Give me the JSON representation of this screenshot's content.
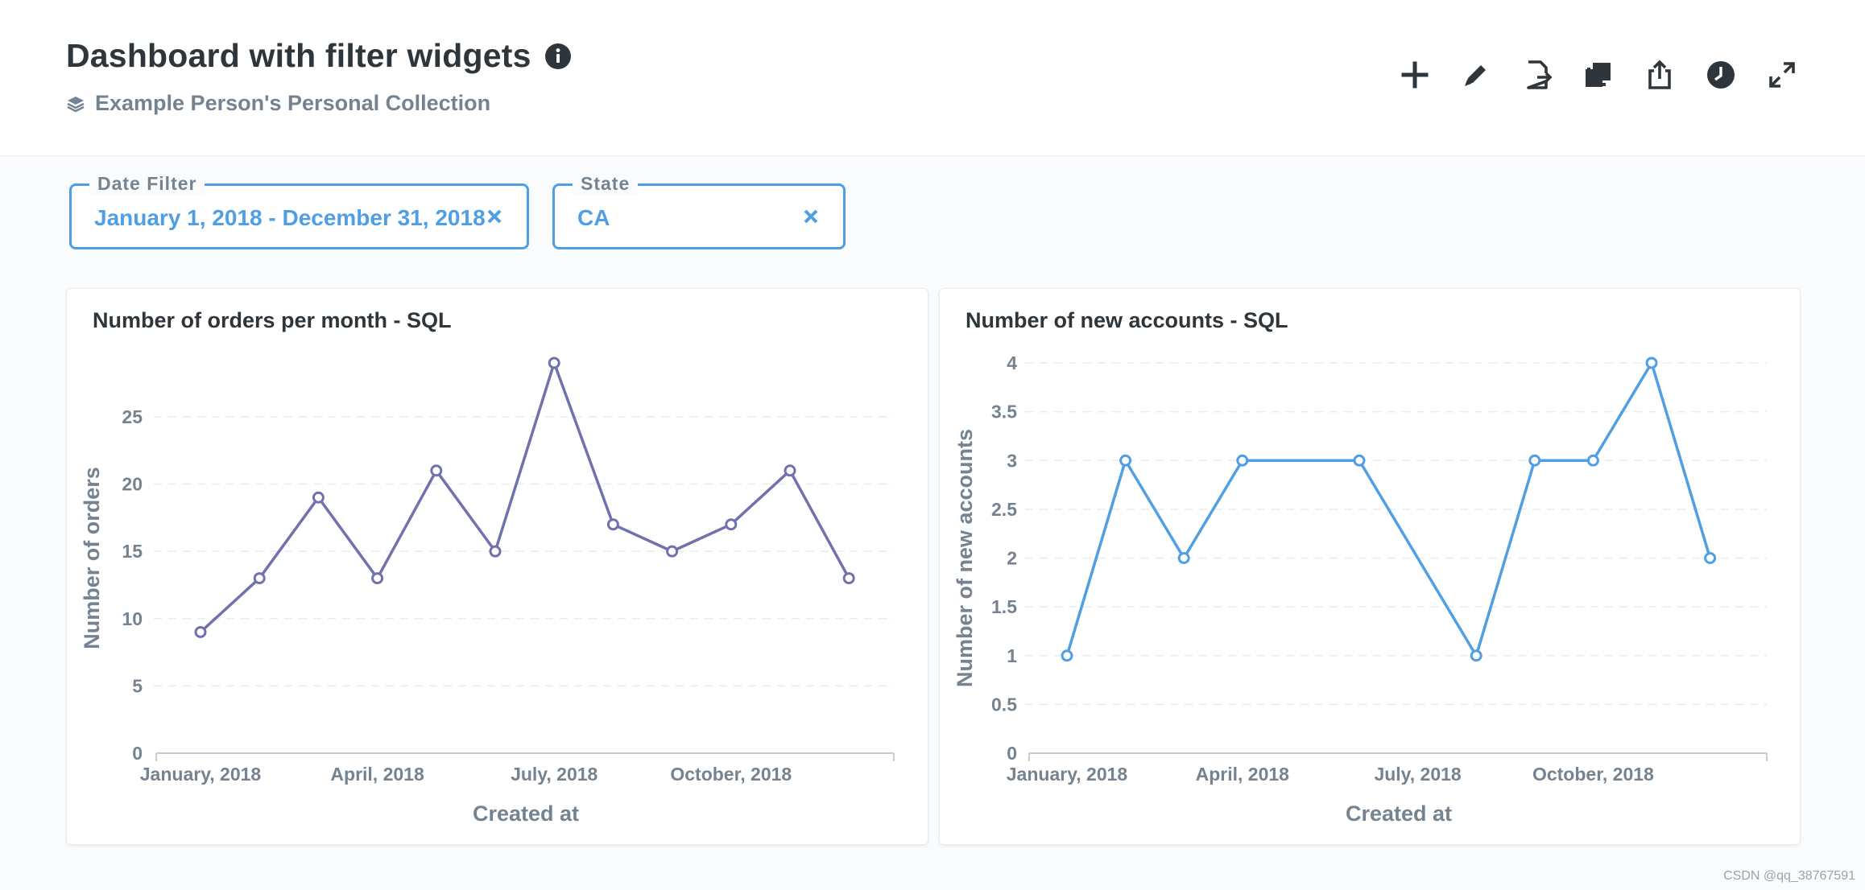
{
  "dashboard": {
    "title": "Dashboard with filter widgets",
    "collection": "Example Person's Personal Collection"
  },
  "toolbar": {
    "icons": [
      "plus-icon",
      "pencil-icon",
      "file-export-icon",
      "duplicate-icon",
      "share-icon",
      "clock-icon",
      "fullscreen-icon"
    ]
  },
  "filters": [
    {
      "label": "Date Filter",
      "value": "January 1, 2018 - December 31, 2018"
    },
    {
      "label": "State",
      "value": "CA"
    }
  ],
  "colors": {
    "accent": "#509ee3",
    "purple_series": "#7172ad",
    "blue_series": "#509ee3",
    "muted": "#74838f"
  },
  "watermark": "CSDN @qq_38767591",
  "chart_data": [
    {
      "type": "line",
      "title": "Number of orders per month - SQL",
      "xlabel": "Created at",
      "ylabel": "Number of orders",
      "x": [
        "2018-01",
        "2018-02",
        "2018-03",
        "2018-04",
        "2018-05",
        "2018-06",
        "2018-07",
        "2018-08",
        "2018-09",
        "2018-10",
        "2018-11",
        "2018-12"
      ],
      "x_tick_labels": [
        {
          "x": "2018-01",
          "label": "January, 2018"
        },
        {
          "x": "2018-04",
          "label": "April, 2018"
        },
        {
          "x": "2018-07",
          "label": "July, 2018"
        },
        {
          "x": "2018-10",
          "label": "October, 2018"
        }
      ],
      "yticks": [
        0,
        5,
        10,
        15,
        20,
        25
      ],
      "ylim": [
        0,
        29
      ],
      "grid": true,
      "color": "#7172ad",
      "series": [
        {
          "values": [
            9,
            13,
            19,
            13,
            21,
            15,
            29,
            17,
            15,
            17,
            21,
            13
          ]
        }
      ]
    },
    {
      "type": "line",
      "title": "Number of new accounts - SQL",
      "xlabel": "Created at",
      "ylabel": "Number of new accounts",
      "x": [
        "2018-01",
        "2018-02",
        "2018-03",
        "2018-04",
        "2018-06",
        "2018-08",
        "2018-09",
        "2018-10",
        "2018-11",
        "2018-12"
      ],
      "x_tick_labels": [
        {
          "x": "2018-01",
          "label": "January, 2018"
        },
        {
          "x": "2018-04",
          "label": "April, 2018"
        },
        {
          "x": "2018-07",
          "label": "July, 2018"
        },
        {
          "x": "2018-10",
          "label": "October, 2018"
        }
      ],
      "yticks": [
        "0",
        "0.5",
        "1",
        "1.5",
        "2",
        "2.5",
        "3",
        "3.5",
        "4"
      ],
      "ylim": [
        0,
        4
      ],
      "grid": true,
      "color": "#509ee3",
      "series": [
        {
          "values": [
            1,
            3,
            2,
            3,
            3,
            1,
            3,
            3,
            4,
            2
          ]
        }
      ]
    }
  ]
}
